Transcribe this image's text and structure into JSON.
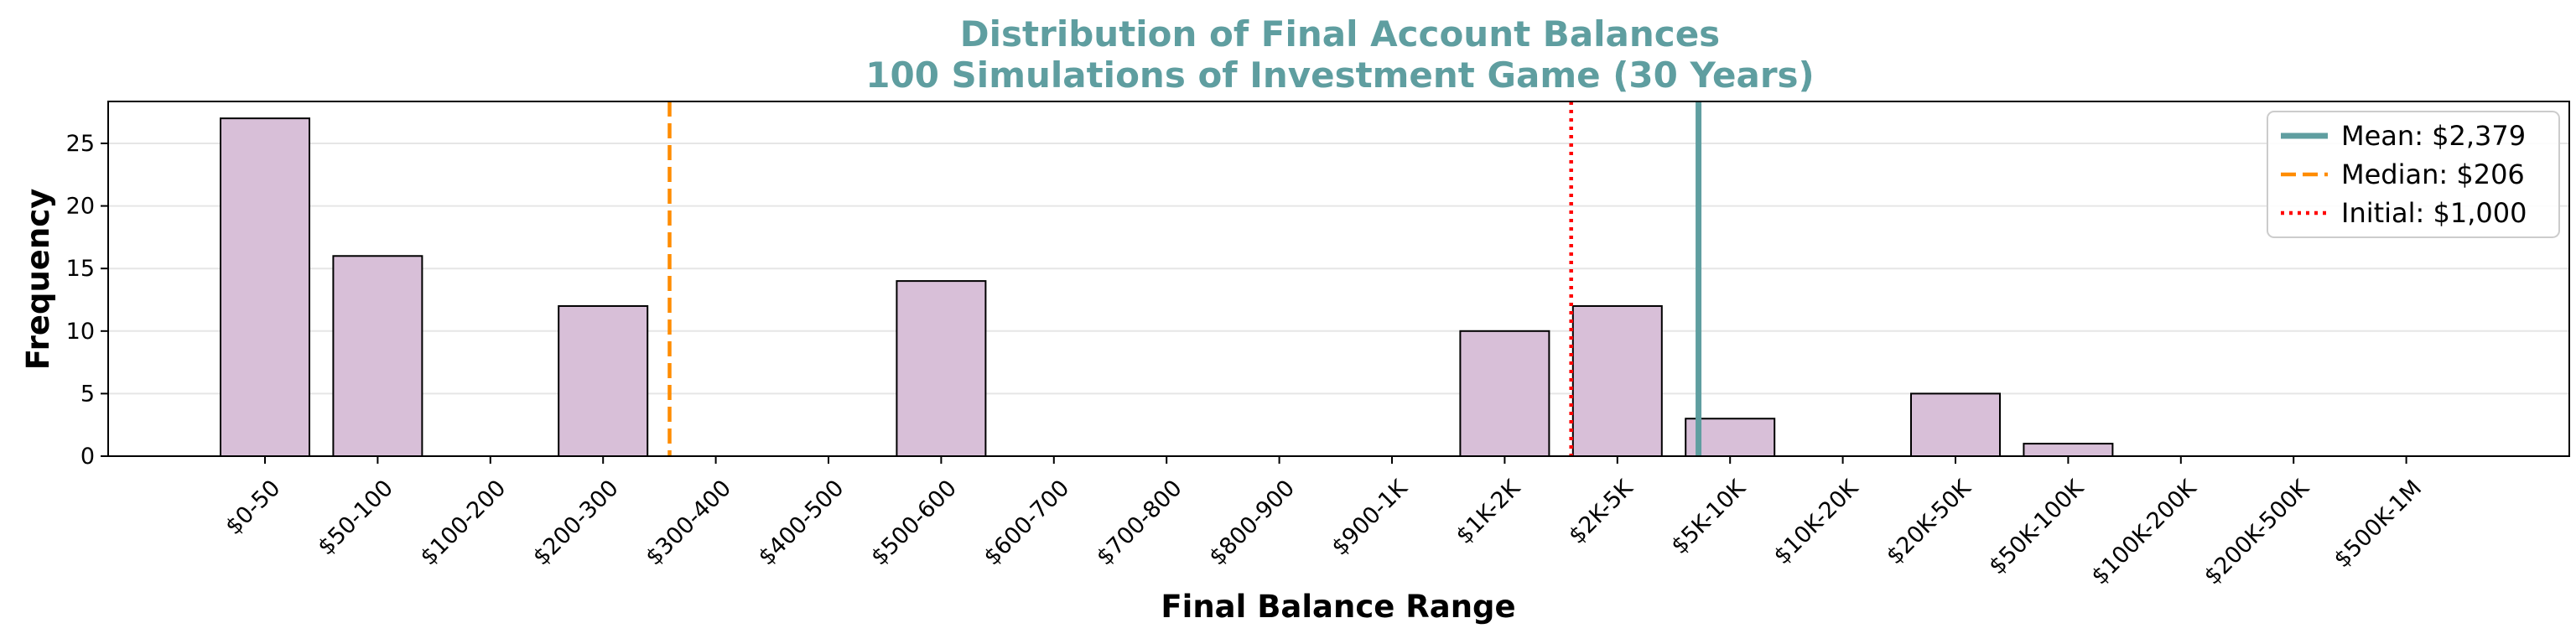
{
  "chart_data": {
    "type": "bar",
    "title": "Distribution of Final Account Balances",
    "subtitle": "100 Simulations of Investment Game (30 Years)",
    "xlabel": "Final Balance Range",
    "ylabel": "Frequency",
    "categories": [
      "$0-50",
      "$50-100",
      "$100-200",
      "$200-300",
      "$300-400",
      "$400-500",
      "$500-600",
      "$600-700",
      "$700-800",
      "$800-900",
      "$900-1K",
      "$1K-2K",
      "$2K-5K",
      "$5K-10K",
      "$10K-20K",
      "$20K-50K",
      "$50K-100K",
      "$100K-200K",
      "$200K-500K",
      "$500K-1M"
    ],
    "values": [
      27,
      16,
      0,
      12,
      0,
      0,
      14,
      0,
      0,
      0,
      0,
      10,
      12,
      3,
      0,
      5,
      1,
      0,
      0,
      0
    ],
    "ylim": [
      0,
      28.35
    ],
    "yticks": [
      0,
      5,
      10,
      15,
      20,
      25
    ],
    "grid": "horizontal",
    "legend_position": "top-right",
    "reference_lines": [
      {
        "label": "Mean: $2,379",
        "value": 2379,
        "category_position": 12.72,
        "style": "solid",
        "color": "#5f9ea0"
      },
      {
        "label": "Median: $206",
        "value": 206,
        "category_position": 3.59,
        "style": "dashed",
        "color": "#ff8c00"
      },
      {
        "label": "Initial: $1,000",
        "value": 1000,
        "category_position": 11.59,
        "style": "dotted",
        "color": "#ff0000"
      }
    ],
    "colors": {
      "title": "#5f9ea0",
      "bar_fill": "#d8bfd8",
      "bar_edge": "#000000",
      "grid": "#e6e6e6"
    }
  }
}
